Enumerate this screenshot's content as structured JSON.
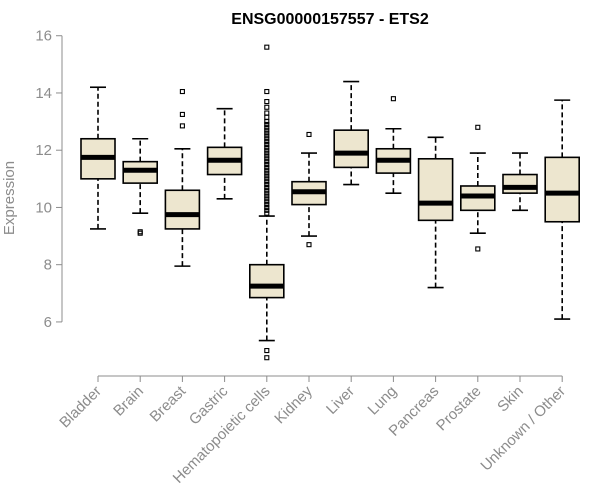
{
  "chart_data": {
    "type": "boxplot",
    "title": "ENSG00000157557 - ETS2",
    "xlabel": "",
    "ylabel": "Expression",
    "ylim": [
      4.6,
      16.2
    ],
    "yticks": [
      6,
      8,
      10,
      12,
      14,
      16
    ],
    "grid": false,
    "colors": {
      "box_fill": "#ede6cf",
      "stroke": "#000000",
      "axis": "#8c8c8c"
    },
    "categories": [
      "Bladder",
      "Brain",
      "Breast",
      "Gastric",
      "Hematopoietic cells",
      "Kidney",
      "Liver",
      "Lung",
      "Pancreas",
      "Prostate",
      "Skin",
      "Unknown / Other"
    ],
    "boxes": [
      {
        "category": "Bladder",
        "whisker_low": 9.25,
        "q1": 11.0,
        "median": 11.75,
        "q3": 12.4,
        "whisker_high": 14.2,
        "outliers": []
      },
      {
        "category": "Brain",
        "whisker_low": 9.8,
        "q1": 10.85,
        "median": 11.3,
        "q3": 11.6,
        "whisker_high": 12.4,
        "outliers": [
          9.15,
          9.1
        ]
      },
      {
        "category": "Breast",
        "whisker_low": 7.95,
        "q1": 9.25,
        "median": 9.75,
        "q3": 10.6,
        "whisker_high": 12.05,
        "outliers": [
          12.85,
          13.25,
          14.05
        ]
      },
      {
        "category": "Gastric",
        "whisker_low": 10.3,
        "q1": 11.15,
        "median": 11.65,
        "q3": 12.1,
        "whisker_high": 13.45,
        "outliers": []
      },
      {
        "category": "Hematopoietic cells",
        "whisker_low": 5.35,
        "q1": 6.85,
        "median": 7.25,
        "q3": 8.0,
        "whisker_high": 9.7,
        "outliers": [
          4.75,
          5.0,
          9.8,
          9.9,
          10.0,
          10.1,
          10.2,
          10.3,
          10.4,
          10.5,
          10.6,
          10.7,
          10.8,
          10.9,
          11.0,
          11.1,
          11.2,
          11.3,
          11.4,
          11.5,
          11.6,
          11.7,
          11.8,
          11.9,
          12.0,
          12.1,
          12.2,
          12.3,
          12.4,
          12.5,
          12.6,
          12.7,
          12.8,
          12.9,
          13.0,
          13.15,
          13.3,
          13.5,
          13.7,
          14.05,
          15.6
        ]
      },
      {
        "category": "Kidney",
        "whisker_low": 9.0,
        "q1": 10.1,
        "median": 10.55,
        "q3": 10.9,
        "whisker_high": 11.9,
        "outliers": [
          8.7,
          12.55
        ]
      },
      {
        "category": "Liver",
        "whisker_low": 10.8,
        "q1": 11.4,
        "median": 11.9,
        "q3": 12.7,
        "whisker_high": 14.4,
        "outliers": []
      },
      {
        "category": "Lung",
        "whisker_low": 10.5,
        "q1": 11.2,
        "median": 11.65,
        "q3": 12.05,
        "whisker_high": 12.75,
        "outliers": [
          13.8
        ]
      },
      {
        "category": "Pancreas",
        "whisker_low": 7.2,
        "q1": 9.55,
        "median": 10.15,
        "q3": 11.7,
        "whisker_high": 12.45,
        "outliers": []
      },
      {
        "category": "Prostate",
        "whisker_low": 9.1,
        "q1": 9.9,
        "median": 10.4,
        "q3": 10.75,
        "whisker_high": 11.9,
        "outliers": [
          8.55,
          12.8
        ]
      },
      {
        "category": "Skin",
        "whisker_low": 9.9,
        "q1": 10.5,
        "median": 10.7,
        "q3": 11.15,
        "whisker_high": 11.9,
        "outliers": []
      },
      {
        "category": "Unknown / Other",
        "whisker_low": 6.1,
        "q1": 9.5,
        "median": 10.5,
        "q3": 11.75,
        "whisker_high": 13.75,
        "outliers": []
      }
    ]
  }
}
